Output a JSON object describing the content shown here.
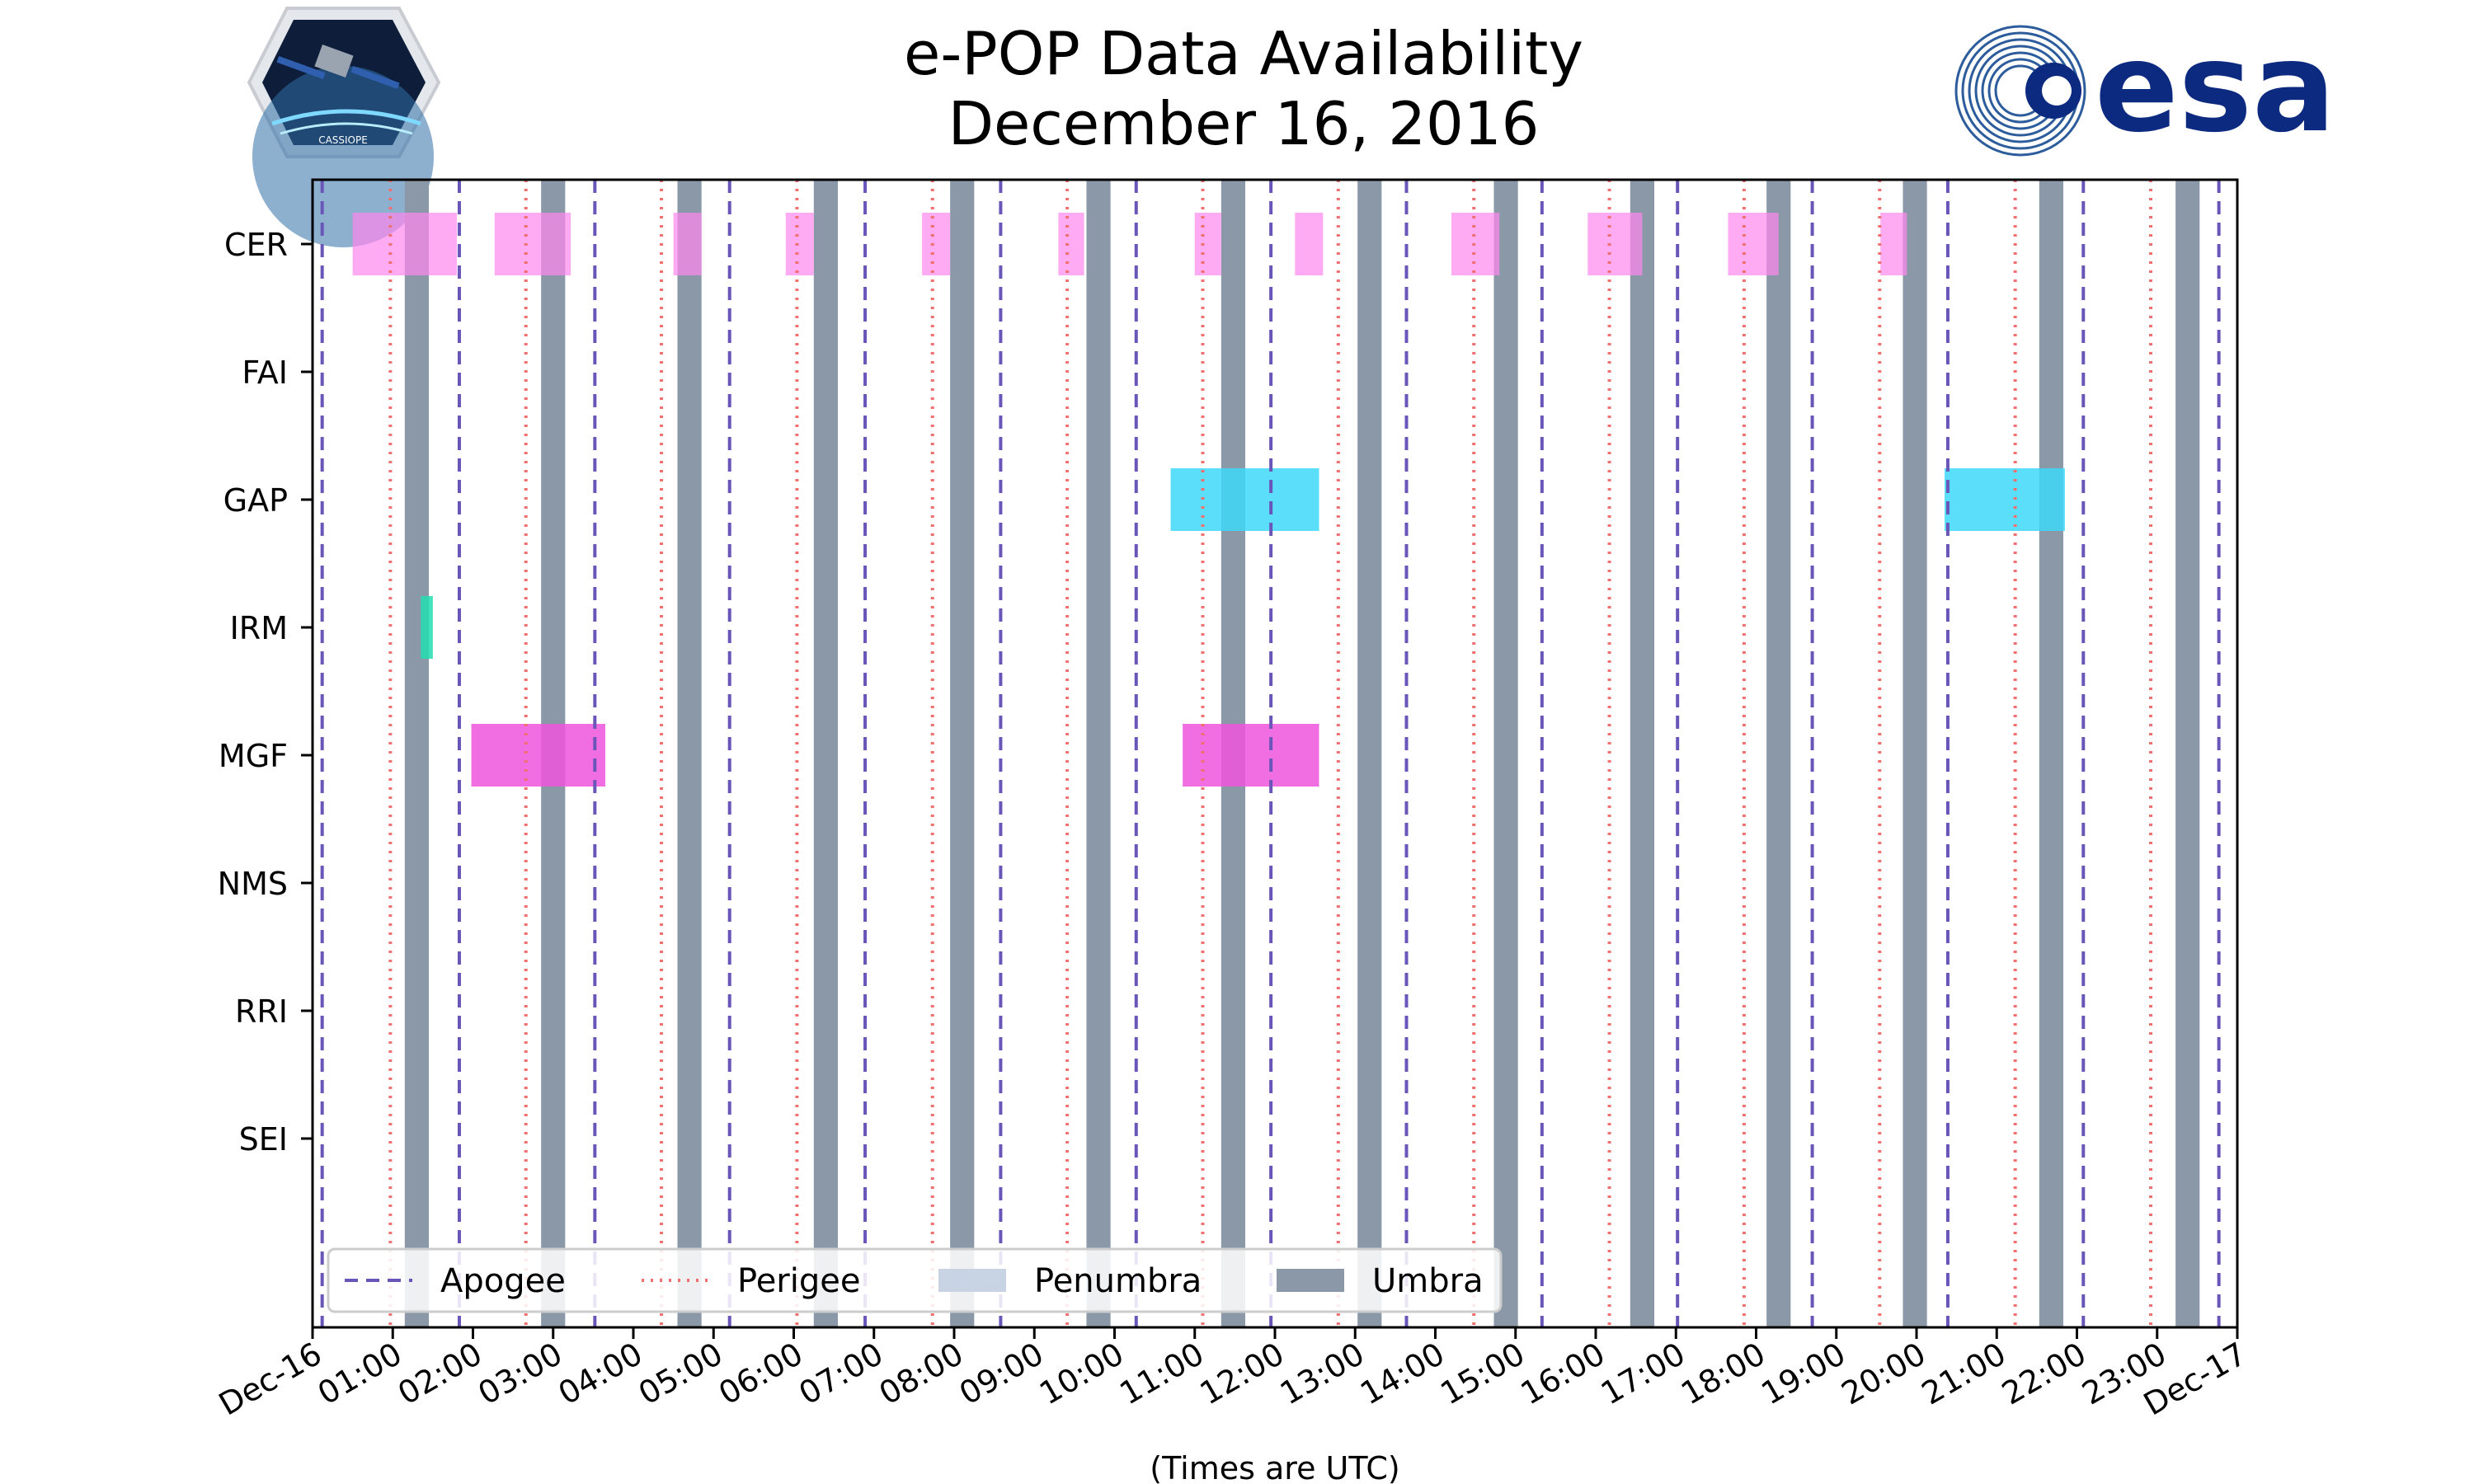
{
  "chart_data": {
    "type": "timeline",
    "title": "e-POP Data Availability",
    "subtitle": "December 16, 2016",
    "xlabel": "(Times are UTC)",
    "ylabel": "",
    "xlim_hours": [
      0,
      24
    ],
    "x_tick_labels": [
      "Dec-16",
      "01:00",
      "02:00",
      "03:00",
      "04:00",
      "05:00",
      "06:00",
      "07:00",
      "08:00",
      "09:00",
      "10:00",
      "11:00",
      "12:00",
      "13:00",
      "14:00",
      "15:00",
      "16:00",
      "17:00",
      "18:00",
      "19:00",
      "20:00",
      "21:00",
      "22:00",
      "23:00",
      "Dec-17"
    ],
    "instruments": [
      "CER",
      "FAI",
      "GAP",
      "IRM",
      "MGF",
      "NMS",
      "RRI",
      "SEI"
    ],
    "apogee_hours": [
      0.12,
      1.83,
      3.52,
      5.2,
      6.89,
      8.58,
      10.27,
      11.95,
      13.64,
      15.33,
      17.02,
      18.7,
      20.39,
      22.08,
      23.77
    ],
    "perigee_hours": [
      0.97,
      2.66,
      4.35,
      6.04,
      7.73,
      9.41,
      11.1,
      12.79,
      14.48,
      16.17,
      17.85,
      19.54,
      21.23,
      22.92
    ],
    "umbra_hours": [
      [
        1.15,
        1.45
      ],
      [
        2.85,
        3.15
      ],
      [
        4.55,
        4.85
      ],
      [
        6.25,
        6.55
      ],
      [
        7.95,
        8.25
      ],
      [
        9.65,
        9.95
      ],
      [
        11.33,
        11.63
      ],
      [
        13.03,
        13.33
      ],
      [
        14.73,
        15.03
      ],
      [
        16.43,
        16.73
      ],
      [
        18.13,
        18.43
      ],
      [
        19.83,
        20.13
      ],
      [
        21.53,
        21.83
      ],
      [
        23.23,
        23.53
      ]
    ],
    "penumbra_hours": [],
    "availability": {
      "CER": [
        [
          0.5,
          1.8
        ],
        [
          2.27,
          3.22
        ],
        [
          4.5,
          4.85
        ],
        [
          5.9,
          6.25
        ],
        [
          7.6,
          7.95
        ],
        [
          9.3,
          9.62
        ],
        [
          11.0,
          11.33
        ],
        [
          12.25,
          12.6
        ],
        [
          14.2,
          14.8
        ],
        [
          15.9,
          16.58
        ],
        [
          17.65,
          18.28
        ],
        [
          19.55,
          19.88
        ]
      ],
      "FAI": [],
      "GAP": [
        [
          10.7,
          12.55
        ],
        [
          20.35,
          21.85
        ]
      ],
      "IRM": [
        [
          1.35,
          1.5
        ]
      ],
      "MGF": [
        [
          1.98,
          3.65
        ],
        [
          10.85,
          12.55
        ]
      ],
      "NMS": [],
      "RRI": [],
      "SEI": []
    },
    "colors": {
      "CER": "#ff88ee",
      "GAP": "#3dd8f8",
      "IRM": "#22ddb0",
      "MGF": "#ee55dd",
      "apogee": "#6a55b8",
      "perigee": "#f07070",
      "umbra": "#8a98a8",
      "penumbra": "#c8d4e4"
    },
    "legend": {
      "placement": "lower-left",
      "entries": [
        {
          "label": "Apogee",
          "style": "dashed"
        },
        {
          "label": "Perigee",
          "style": "dotted"
        },
        {
          "label": "Penumbra",
          "style": "patch"
        },
        {
          "label": "Umbra",
          "style": "patch"
        }
      ]
    }
  },
  "logos": {
    "mission_badge_text": "CASSIOPE",
    "agency_word": "esa"
  }
}
